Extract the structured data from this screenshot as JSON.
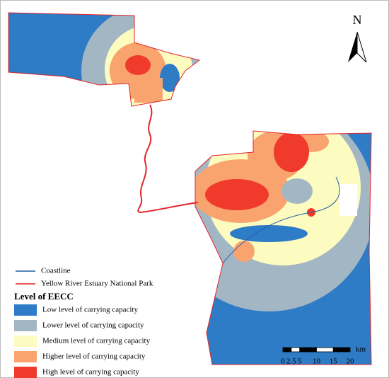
{
  "map": {
    "north_label": "N",
    "legend": {
      "coastline": "Coastline",
      "park": "Yellow River Estuary National Park",
      "title": "Level of EECC",
      "levels": [
        {
          "name": "Low level of carrying capacity",
          "color": "#2e7bc6"
        },
        {
          "name": "Lower level of carrying capacity",
          "color": "#a3b6c4"
        },
        {
          "name": "Medium level of carrying capacity",
          "color": "#fdfcc0"
        },
        {
          "name": "Higher level of carrying capacity",
          "color": "#f9a46f"
        },
        {
          "name": "High level of carrying capacity",
          "color": "#f03a2c"
        }
      ]
    },
    "scale_bar": {
      "unit": "km",
      "ticks": [
        0,
        2.5,
        5,
        10,
        15,
        20
      ]
    }
  }
}
